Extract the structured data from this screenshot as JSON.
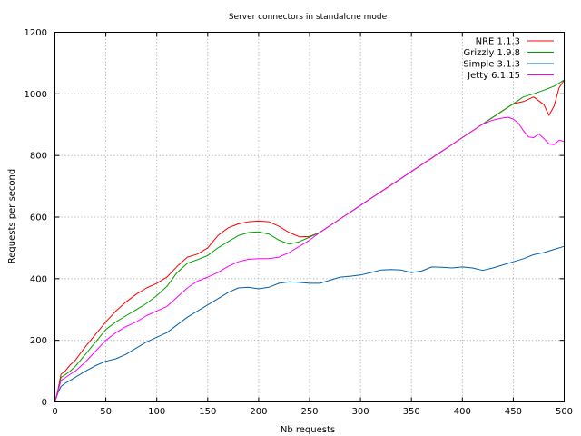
{
  "chart_data": {
    "type": "line",
    "title": "Server connectors in standalone mode",
    "xlabel": "Nb requests",
    "ylabel": "Requests per second",
    "xlim": [
      0,
      500
    ],
    "ylim": [
      0,
      1200
    ],
    "xticks": [
      "0",
      "50",
      "100",
      "150",
      "200",
      "250",
      "300",
      "350",
      "400",
      "450",
      "500"
    ],
    "yticks": [
      "0",
      "200",
      "400",
      "600",
      "800",
      "1000",
      "1200"
    ],
    "grid": true,
    "legend_position": "top-right",
    "series": [
      {
        "name": "NRE 1.1.3",
        "color": "#ff0000",
        "x": [
          0,
          3,
          6,
          10,
          15,
          20,
          30,
          40,
          50,
          60,
          70,
          80,
          90,
          100,
          110,
          120,
          130,
          140,
          150,
          160,
          170,
          180,
          190,
          200,
          210,
          220,
          230,
          240,
          250,
          260,
          270,
          280,
          290,
          300,
          310,
          320,
          330,
          340,
          350,
          360,
          370,
          380,
          390,
          400,
          410,
          420,
          430,
          440,
          450,
          460,
          470,
          480,
          485,
          490,
          495,
          500
        ],
        "y": [
          0,
          40,
          90,
          100,
          120,
          135,
          180,
          220,
          260,
          295,
          325,
          350,
          370,
          385,
          405,
          440,
          470,
          480,
          500,
          540,
          565,
          578,
          585,
          587,
          585,
          570,
          550,
          536,
          537,
          550,
          572,
          594,
          616,
          638,
          660,
          682,
          704,
          726,
          748,
          770,
          792,
          814,
          836,
          858,
          880,
          902,
          924,
          946,
          968,
          975,
          990,
          965,
          930,
          960,
          1020,
          1045
        ]
      },
      {
        "name": "Grizzly 1.9.8",
        "color": "#00a000",
        "x": [
          0,
          3,
          6,
          10,
          15,
          20,
          30,
          40,
          50,
          60,
          70,
          80,
          90,
          100,
          110,
          120,
          130,
          140,
          150,
          160,
          170,
          180,
          190,
          200,
          210,
          220,
          230,
          240,
          250,
          260,
          270,
          280,
          290,
          300,
          310,
          320,
          330,
          340,
          350,
          360,
          370,
          380,
          390,
          400,
          410,
          420,
          430,
          440,
          450,
          460,
          470,
          480,
          490,
          500
        ],
        "y": [
          0,
          35,
          80,
          88,
          100,
          115,
          155,
          195,
          235,
          260,
          280,
          300,
          320,
          345,
          375,
          420,
          450,
          462,
          475,
          500,
          520,
          540,
          550,
          552,
          545,
          525,
          512,
          520,
          535,
          550,
          572,
          594,
          616,
          638,
          660,
          682,
          704,
          726,
          748,
          770,
          792,
          814,
          836,
          858,
          880,
          902,
          924,
          946,
          968,
          990,
          1000,
          1012,
          1025,
          1045
        ]
      },
      {
        "name": "Simple 3.1.3",
        "color": "#0060ad",
        "x": [
          0,
          3,
          6,
          10,
          15,
          20,
          30,
          40,
          50,
          60,
          70,
          80,
          90,
          100,
          110,
          120,
          130,
          140,
          150,
          160,
          170,
          180,
          190,
          200,
          210,
          220,
          230,
          240,
          250,
          260,
          270,
          280,
          290,
          300,
          310,
          320,
          330,
          340,
          350,
          360,
          370,
          380,
          390,
          400,
          410,
          420,
          430,
          440,
          450,
          460,
          470,
          480,
          490,
          500
        ],
        "y": [
          0,
          30,
          50,
          60,
          70,
          80,
          100,
          118,
          132,
          140,
          155,
          175,
          195,
          210,
          225,
          250,
          275,
          295,
          315,
          335,
          355,
          370,
          372,
          367,
          372,
          385,
          390,
          388,
          385,
          385,
          395,
          405,
          408,
          412,
          420,
          428,
          430,
          428,
          420,
          425,
          438,
          437,
          435,
          438,
          435,
          427,
          435,
          445,
          455,
          465,
          478,
          485,
          495,
          505
        ]
      },
      {
        "name": "Jetty 6.1.15",
        "color": "#ff00ff",
        "x": [
          0,
          3,
          6,
          10,
          15,
          20,
          30,
          40,
          50,
          60,
          70,
          80,
          90,
          100,
          110,
          120,
          130,
          140,
          150,
          160,
          170,
          180,
          190,
          200,
          210,
          220,
          230,
          240,
          250,
          260,
          270,
          280,
          290,
          300,
          310,
          320,
          330,
          340,
          350,
          360,
          370,
          380,
          390,
          400,
          410,
          420,
          430,
          440,
          445,
          450,
          455,
          460,
          465,
          470,
          475,
          480,
          485,
          490,
          495,
          500
        ],
        "y": [
          0,
          35,
          70,
          78,
          90,
          100,
          130,
          165,
          200,
          225,
          245,
          260,
          280,
          295,
          310,
          340,
          370,
          392,
          405,
          420,
          440,
          455,
          463,
          465,
          465,
          470,
          485,
          505,
          525,
          550,
          572,
          594,
          616,
          638,
          660,
          682,
          704,
          726,
          748,
          770,
          792,
          814,
          836,
          858,
          880,
          902,
          915,
          922,
          924,
          918,
          905,
          880,
          860,
          858,
          870,
          855,
          838,
          835,
          850,
          845
        ]
      }
    ]
  }
}
